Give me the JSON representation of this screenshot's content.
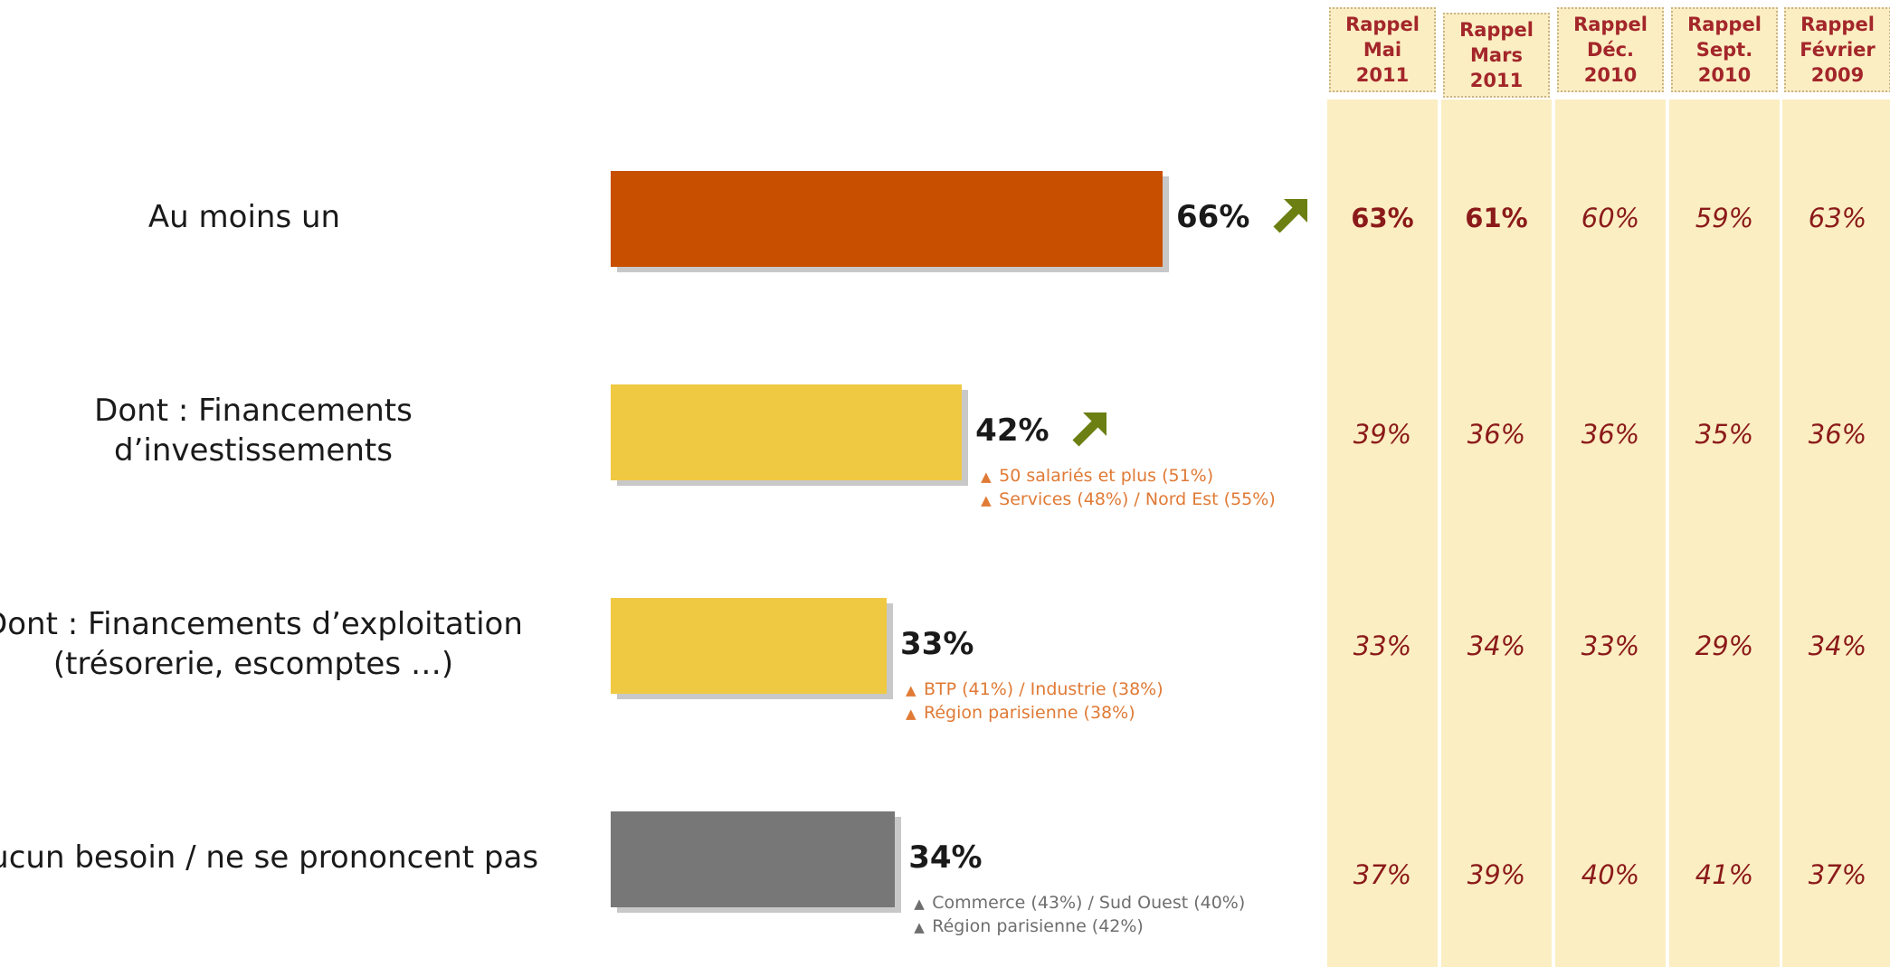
{
  "chart_data": {
    "type": "bar",
    "orientation": "horizontal",
    "xlim": [
      0,
      100
    ],
    "categories": [
      "Au moins un",
      "Dont : Financements d’investissements",
      "Dont : Financements d’exploitation (trésorerie, escomptes …)",
      "Aucun besoin / ne se prononcent pas"
    ],
    "category_lines": [
      [
        "Au moins un"
      ],
      [
        "Dont : Financements",
        "d’investissements"
      ],
      [
        "Dont : Financements d’exploitation",
        "(trésorerie, escomptes …)"
      ],
      [
        "Aucun besoin / ne se prononcent pas"
      ]
    ],
    "values": [
      66,
      42,
      33,
      34
    ],
    "value_labels": [
      "66%",
      "42%",
      "33%",
      "34%"
    ],
    "bar_colors": [
      "#c84f00",
      "#f0c942",
      "#f0c942",
      "#777777"
    ],
    "trend": [
      "up",
      "up",
      "",
      ""
    ],
    "trend_icon": "arrow-up-right-icon",
    "trend_color": "#6b7f12",
    "notes": [
      [],
      [
        "50 salariés et plus (51%)",
        "Services (48%) / Nord Est (55%)"
      ],
      [
        "BTP (41%) / Industrie (38%)",
        "Région parisienne (38%)"
      ],
      [
        "Commerce (43%) / Sud Ouest (40%)",
        "Région parisienne (42%)"
      ]
    ],
    "note_colors": [
      "#e07a35",
      "#e07a35",
      "#e07a35",
      "#6e6e6e"
    ],
    "note_icon": "triangle-up-icon",
    "comparison": {
      "columns": [
        [
          "Rappel",
          "Mai",
          "2011"
        ],
        [
          "Rappel",
          "Mars",
          "2011"
        ],
        [
          "Rappel",
          "Déc.",
          "2010"
        ],
        [
          "Rappel",
          "Sept.",
          "2010"
        ],
        [
          "Rappel",
          "Février",
          "2009"
        ]
      ],
      "rows": [
        [
          "63%",
          "61%",
          "60%",
          "59%",
          "63%"
        ],
        [
          "39%",
          "36%",
          "36%",
          "35%",
          "36%"
        ],
        [
          "33%",
          "34%",
          "33%",
          "29%",
          "34%"
        ],
        [
          "37%",
          "39%",
          "40%",
          "41%",
          "37%"
        ]
      ],
      "background": "#fbeec2",
      "text_color": "#8b1a1a"
    }
  }
}
